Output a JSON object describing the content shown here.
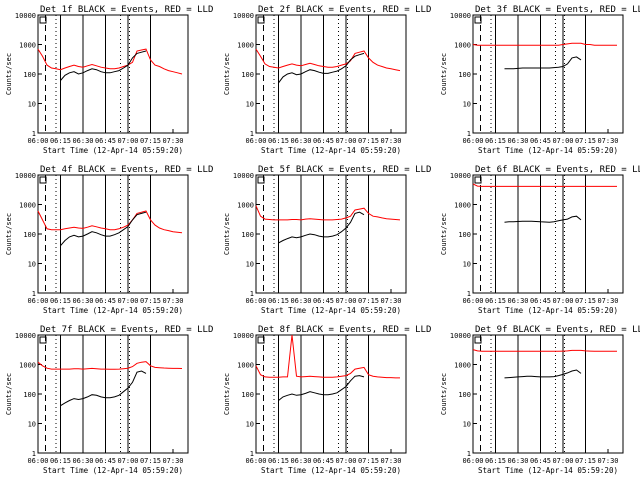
{
  "chart_data": {
    "type": "line",
    "y_axis_label": "Counts/sec",
    "y_scale": "log",
    "ylim": [
      1,
      10000
    ],
    "y_ticks": [
      1,
      10,
      100,
      1000,
      10000
    ],
    "x_tick_labels": [
      "06:00",
      "06:15",
      "06:30",
      "06:45",
      "07:00",
      "07:15",
      "07:30"
    ],
    "x_axis_label": "Start Time (12-Apr-14 05:59:20)",
    "series_colors": {
      "events": "#000000",
      "lld": "#ff0000"
    },
    "panels": [
      {
        "title": "Det 1f BLACK = Events, RED = LLD",
        "x": [
          "06:00",
          "06:03",
          "06:06",
          "06:09",
          "06:12",
          "06:15",
          "06:18",
          "06:21",
          "06:24",
          "06:27",
          "06:30",
          "06:33",
          "06:36",
          "06:39",
          "06:42",
          "06:45",
          "06:48",
          "06:51",
          "06:54",
          "06:57",
          "07:00",
          "07:03",
          "07:06",
          "07:09",
          "07:12",
          "07:15",
          "07:18",
          "07:21",
          "07:24",
          "07:27",
          "07:30",
          "07:33",
          "07:36"
        ],
        "lld": [
          700,
          400,
          200,
          160,
          150,
          140,
          160,
          180,
          200,
          180,
          170,
          190,
          210,
          190,
          170,
          160,
          150,
          150,
          160,
          180,
          200,
          250,
          600,
          650,
          700,
          300,
          200,
          180,
          150,
          130,
          120,
          110,
          100
        ],
        "events": [
          null,
          null,
          null,
          null,
          null,
          60,
          90,
          110,
          120,
          100,
          110,
          130,
          150,
          140,
          120,
          110,
          110,
          120,
          130,
          160,
          200,
          350,
          500,
          550,
          600,
          null,
          null,
          null,
          null,
          null,
          null,
          null,
          null
        ]
      },
      {
        "title": "Det 2f BLACK = Events, RED = LLD",
        "x": [
          "06:00",
          "06:03",
          "06:06",
          "06:09",
          "06:12",
          "06:15",
          "06:18",
          "06:21",
          "06:24",
          "06:27",
          "06:30",
          "06:33",
          "06:36",
          "06:39",
          "06:42",
          "06:45",
          "06:48",
          "06:51",
          "06:54",
          "06:57",
          "07:00",
          "07:03",
          "07:06",
          "07:09",
          "07:12",
          "07:15",
          "07:18",
          "07:21",
          "07:24",
          "07:27",
          "07:30",
          "07:33",
          "07:36"
        ],
        "lld": [
          700,
          400,
          220,
          180,
          170,
          160,
          180,
          200,
          220,
          200,
          190,
          210,
          230,
          210,
          190,
          180,
          170,
          170,
          180,
          200,
          220,
          280,
          500,
          550,
          600,
          350,
          250,
          200,
          180,
          160,
          150,
          140,
          130
        ],
        "events": [
          null,
          null,
          null,
          null,
          null,
          50,
          80,
          100,
          110,
          95,
          100,
          120,
          140,
          130,
          115,
          105,
          105,
          115,
          125,
          150,
          190,
          300,
          400,
          450,
          500,
          null,
          null,
          null,
          null,
          null,
          null,
          null,
          null
        ]
      },
      {
        "title": "Det 3f BLACK = Events, RED = LLD",
        "x": [
          "06:00",
          "06:03",
          "06:06",
          "06:09",
          "06:12",
          "06:15",
          "06:18",
          "06:21",
          "06:24",
          "06:27",
          "06:30",
          "06:33",
          "06:36",
          "06:39",
          "06:42",
          "06:45",
          "06:48",
          "06:51",
          "06:54",
          "06:57",
          "07:00",
          "07:03",
          "07:06",
          "07:09",
          "07:12",
          "07:15",
          "07:18",
          "07:21",
          "07:24",
          "07:27",
          "07:30",
          "07:33",
          "07:36"
        ],
        "lld": [
          1000,
          950,
          950,
          950,
          950,
          950,
          950,
          950,
          950,
          950,
          950,
          950,
          950,
          950,
          950,
          950,
          950,
          950,
          950,
          950,
          1000,
          1050,
          1100,
          1100,
          1100,
          1000,
          1000,
          950,
          950,
          950,
          950,
          950,
          950
        ],
        "events": [
          null,
          null,
          null,
          null,
          null,
          null,
          null,
          150,
          150,
          150,
          155,
          160,
          160,
          160,
          160,
          160,
          160,
          160,
          165,
          170,
          180,
          220,
          350,
          380,
          300,
          null,
          null,
          null,
          null,
          null,
          null,
          null,
          null
        ]
      },
      {
        "title": "Det 4f BLACK = Events, RED = LLD",
        "x": [
          "06:00",
          "06:03",
          "06:06",
          "06:09",
          "06:12",
          "06:15",
          "06:18",
          "06:21",
          "06:24",
          "06:27",
          "06:30",
          "06:33",
          "06:36",
          "06:39",
          "06:42",
          "06:45",
          "06:48",
          "06:51",
          "06:54",
          "06:57",
          "07:00",
          "07:03",
          "07:06",
          "07:09",
          "07:12",
          "07:15",
          "07:18",
          "07:21",
          "07:24",
          "07:27",
          "07:30",
          "07:33",
          "07:36"
        ],
        "lld": [
          600,
          300,
          150,
          140,
          140,
          140,
          150,
          160,
          170,
          160,
          155,
          170,
          190,
          175,
          160,
          150,
          140,
          140,
          150,
          170,
          200,
          300,
          500,
          550,
          600,
          300,
          200,
          160,
          140,
          130,
          120,
          115,
          110
        ],
        "events": [
          null,
          null,
          null,
          null,
          null,
          40,
          60,
          80,
          90,
          80,
          85,
          100,
          120,
          110,
          95,
          85,
          85,
          95,
          110,
          140,
          180,
          300,
          450,
          500,
          550,
          null,
          null,
          null,
          null,
          null,
          null,
          null,
          null
        ]
      },
      {
        "title": "Det 5f BLACK = Events, RED = LLD",
        "x": [
          "06:00",
          "06:03",
          "06:06",
          "06:09",
          "06:12",
          "06:15",
          "06:18",
          "06:21",
          "06:24",
          "06:27",
          "06:30",
          "06:33",
          "06:36",
          "06:39",
          "06:42",
          "06:45",
          "06:48",
          "06:51",
          "06:54",
          "06:57",
          "07:00",
          "07:03",
          "07:06",
          "07:09",
          "07:12",
          "07:15",
          "07:18",
          "07:21",
          "07:24",
          "07:27",
          "07:30",
          "07:33",
          "07:36"
        ],
        "lld": [
          900,
          400,
          320,
          310,
          300,
          300,
          300,
          300,
          310,
          310,
          300,
          320,
          330,
          320,
          310,
          300,
          300,
          300,
          310,
          320,
          350,
          400,
          650,
          700,
          750,
          500,
          400,
          380,
          350,
          330,
          320,
          310,
          300
        ],
        "events": [
          null,
          null,
          null,
          null,
          null,
          50,
          60,
          70,
          80,
          75,
          80,
          90,
          100,
          95,
          85,
          80,
          80,
          85,
          95,
          120,
          160,
          250,
          500,
          550,
          450,
          null,
          null,
          null,
          null,
          null,
          null,
          null,
          null
        ]
      },
      {
        "title": "Det 6f BLACK = Events, RED = LLD",
        "x": [
          "06:00",
          "06:03",
          "06:06",
          "06:09",
          "06:12",
          "06:15",
          "06:18",
          "06:21",
          "06:24",
          "06:27",
          "06:30",
          "06:33",
          "06:36",
          "06:39",
          "06:42",
          "06:45",
          "06:48",
          "06:51",
          "06:54",
          "06:57",
          "07:00",
          "07:03",
          "07:06",
          "07:09",
          "07:12",
          "07:15",
          "07:18",
          "07:21",
          "07:24",
          "07:27",
          "07:30",
          "07:33",
          "07:36"
        ],
        "lld": [
          5000,
          4200,
          4100,
          4100,
          4100,
          4100,
          4100,
          4100,
          4100,
          4100,
          4100,
          4100,
          4100,
          4100,
          4100,
          4100,
          4100,
          4100,
          4100,
          4100,
          4100,
          4100,
          4100,
          4100,
          4100,
          4100,
          4100,
          4100,
          4100,
          4100,
          4100,
          4100,
          4100
        ],
        "events": [
          null,
          null,
          null,
          null,
          null,
          null,
          null,
          250,
          260,
          260,
          265,
          270,
          270,
          270,
          265,
          260,
          255,
          250,
          260,
          280,
          300,
          320,
          380,
          400,
          300,
          null,
          null,
          null,
          null,
          null,
          null,
          null,
          null
        ]
      },
      {
        "title": "Det 7f BLACK = Events, RED = LLD",
        "x": [
          "06:00",
          "06:03",
          "06:06",
          "06:09",
          "06:12",
          "06:15",
          "06:18",
          "06:21",
          "06:24",
          "06:27",
          "06:30",
          "06:33",
          "06:36",
          "06:39",
          "06:42",
          "06:45",
          "06:48",
          "06:51",
          "06:54",
          "06:57",
          "07:00",
          "07:03",
          "07:06",
          "07:09",
          "07:12",
          "07:15",
          "07:18",
          "07:21",
          "07:24",
          "07:27",
          "07:30",
          "07:33",
          "07:36"
        ],
        "lld": [
          1200,
          900,
          750,
          700,
          700,
          700,
          700,
          700,
          720,
          720,
          700,
          720,
          740,
          720,
          700,
          700,
          690,
          690,
          700,
          720,
          750,
          850,
          1100,
          1200,
          1250,
          900,
          800,
          780,
          760,
          750,
          740,
          740,
          730
        ],
        "events": [
          null,
          null,
          null,
          null,
          null,
          40,
          50,
          60,
          70,
          65,
          70,
          80,
          95,
          90,
          80,
          75,
          75,
          80,
          90,
          120,
          160,
          250,
          550,
          600,
          500,
          null,
          null,
          null,
          null,
          null,
          null,
          null,
          null
        ]
      },
      {
        "title": "Det 8f BLACK = Events, RED = LLD",
        "x": [
          "06:00",
          "06:03",
          "06:06",
          "06:09",
          "06:12",
          "06:15",
          "06:18",
          "06:21",
          "06:24",
          "06:27",
          "06:30",
          "06:33",
          "06:36",
          "06:39",
          "06:42",
          "06:45",
          "06:48",
          "06:51",
          "06:54",
          "06:57",
          "07:00",
          "07:03",
          "07:06",
          "07:09",
          "07:12",
          "07:15",
          "07:18",
          "07:21",
          "07:24",
          "07:27",
          "07:30",
          "07:33",
          "07:36"
        ],
        "lld": [
          900,
          450,
          380,
          370,
          370,
          370,
          380,
          380,
          10000,
          400,
          380,
          390,
          400,
          390,
          380,
          370,
          370,
          370,
          380,
          400,
          420,
          500,
          700,
          750,
          800,
          450,
          400,
          380,
          370,
          360,
          360,
          350,
          350
        ],
        "events": [
          null,
          null,
          null,
          null,
          null,
          60,
          80,
          90,
          100,
          90,
          95,
          105,
          120,
          110,
          100,
          95,
          95,
          100,
          110,
          140,
          180,
          280,
          400,
          420,
          380,
          null,
          null,
          null,
          null,
          null,
          null,
          null,
          null
        ]
      },
      {
        "title": "Det 9f BLACK = Events, RED = LLD",
        "x": [
          "06:00",
          "06:03",
          "06:06",
          "06:09",
          "06:12",
          "06:15",
          "06:18",
          "06:21",
          "06:24",
          "06:27",
          "06:30",
          "06:33",
          "06:36",
          "06:39",
          "06:42",
          "06:45",
          "06:48",
          "06:51",
          "06:54",
          "06:57",
          "07:00",
          "07:03",
          "07:06",
          "07:09",
          "07:12",
          "07:15",
          "07:18",
          "07:21",
          "07:24",
          "07:27",
          "07:30",
          "07:33",
          "07:36"
        ],
        "lld": [
          3200,
          2900,
          2800,
          2800,
          2800,
          2800,
          2800,
          2800,
          2800,
          2800,
          2800,
          2800,
          2800,
          2800,
          2800,
          2800,
          2800,
          2800,
          2800,
          2800,
          2850,
          2900,
          3000,
          3000,
          3000,
          2900,
          2850,
          2800,
          2800,
          2800,
          2800,
          2800,
          2800
        ],
        "events": [
          null,
          null,
          null,
          null,
          null,
          null,
          null,
          350,
          360,
          370,
          380,
          390,
          400,
          400,
          390,
          380,
          380,
          380,
          390,
          420,
          460,
          520,
          600,
          650,
          500,
          null,
          null,
          null,
          null,
          null,
          null,
          null,
          null
        ]
      }
    ]
  }
}
